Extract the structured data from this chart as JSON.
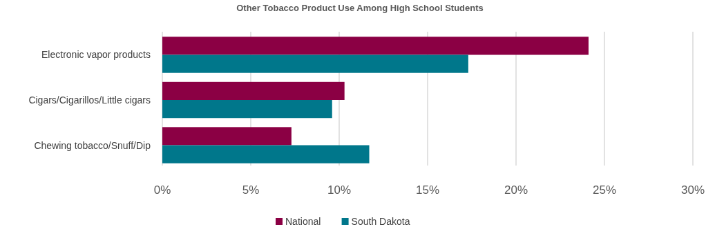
{
  "chart_data": {
    "type": "bar",
    "orientation": "horizontal",
    "title": "Other Tobacco Product Use Among High School Students",
    "categories": [
      "Electronic vapor products",
      "Cigars/Cigarillos/Little cigars",
      "Chewing tobacco/Snuff/Dip"
    ],
    "series": [
      {
        "name": "National",
        "color": "#8b0044",
        "values": [
          24.1,
          10.3,
          7.3
        ]
      },
      {
        "name": "South Dakota",
        "color": "#00778b",
        "values": [
          17.3,
          9.6,
          11.7
        ]
      }
    ],
    "xlim": [
      0,
      30
    ],
    "xticks": [
      {
        "value": 0,
        "label": "0%"
      },
      {
        "value": 5,
        "label": "5%"
      },
      {
        "value": 10,
        "label": "10%"
      },
      {
        "value": 15,
        "label": "15%"
      },
      {
        "value": 20,
        "label": "20%"
      },
      {
        "value": 25,
        "label": "25%"
      },
      {
        "value": 30,
        "label": "30%"
      }
    ],
    "grid": "x",
    "legend": "bottom"
  }
}
